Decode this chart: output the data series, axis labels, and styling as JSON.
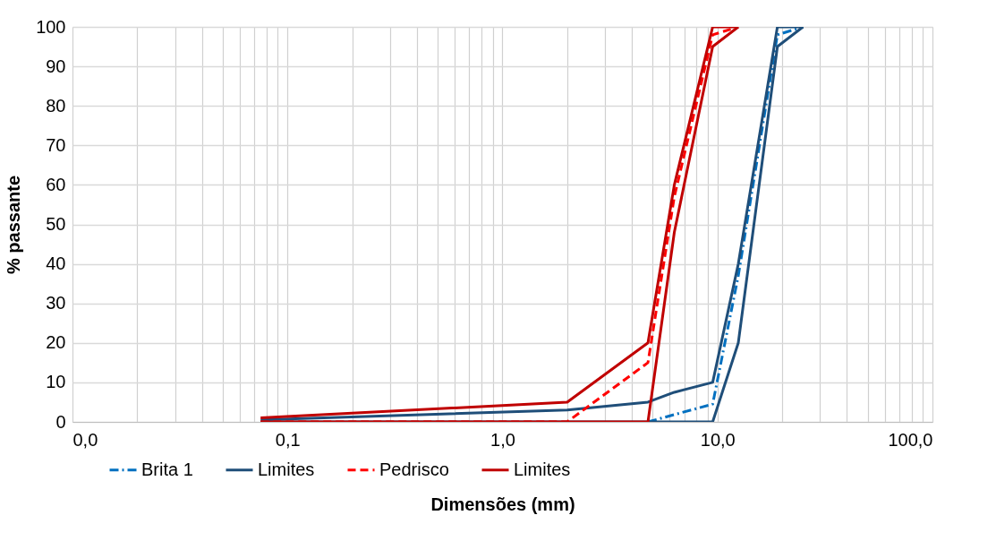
{
  "chart_data": {
    "type": "line",
    "xlabel": "Dimensões (mm)",
    "ylabel": "% passante",
    "log": "x",
    "grid": true,
    "legend": "bottom",
    "xlim": [
      0.01,
      100
    ],
    "ylim": [
      0,
      100
    ],
    "xticks": [
      {
        "value": 0.01,
        "label": "0,0"
      },
      {
        "value": 0.02,
        "label": null
      },
      {
        "value": 0.03,
        "label": null
      },
      {
        "value": 0.04,
        "label": null
      },
      {
        "value": 0.05,
        "label": null
      },
      {
        "value": 0.06,
        "label": null
      },
      {
        "value": 0.07,
        "label": null
      },
      {
        "value": 0.08,
        "label": null
      },
      {
        "value": 0.09,
        "label": null
      },
      {
        "value": 0.1,
        "label": "0,1"
      },
      {
        "value": 0.2,
        "label": null
      },
      {
        "value": 0.3,
        "label": null
      },
      {
        "value": 0.4,
        "label": null
      },
      {
        "value": 0.5,
        "label": null
      },
      {
        "value": 0.6,
        "label": null
      },
      {
        "value": 0.7,
        "label": null
      },
      {
        "value": 0.8,
        "label": null
      },
      {
        "value": 0.9,
        "label": null
      },
      {
        "value": 1,
        "label": "1,0"
      },
      {
        "value": 2,
        "label": null
      },
      {
        "value": 3,
        "label": null
      },
      {
        "value": 4,
        "label": null
      },
      {
        "value": 5,
        "label": null
      },
      {
        "value": 6,
        "label": null
      },
      {
        "value": 7,
        "label": null
      },
      {
        "value": 8,
        "label": null
      },
      {
        "value": 9,
        "label": null
      },
      {
        "value": 10,
        "label": "10,0"
      },
      {
        "value": 20,
        "label": null
      },
      {
        "value": 30,
        "label": null
      },
      {
        "value": 40,
        "label": null
      },
      {
        "value": 50,
        "label": null
      },
      {
        "value": 60,
        "label": null
      },
      {
        "value": 70,
        "label": null
      },
      {
        "value": 80,
        "label": null
      },
      {
        "value": 90,
        "label": null
      },
      {
        "value": 100,
        "label": "100,0"
      }
    ],
    "yticks": [
      0,
      10,
      20,
      30,
      40,
      50,
      60,
      70,
      80,
      90,
      100
    ],
    "series": [
      {
        "name": "Brita 1",
        "color": "#0070c0",
        "line_style": "dashdot",
        "x": [
          4.75,
          9.5,
          12.5,
          19,
          25
        ],
        "values": [
          0,
          4.5,
          37,
          98,
          100
        ]
      },
      {
        "name": "Limites",
        "color": "#1f4e79",
        "line_style": "solid",
        "x": [
          0.075,
          2,
          4.75,
          6.3,
          9.5,
          12.5,
          19,
          25
        ],
        "values": [
          0,
          0,
          0,
          0,
          0,
          20,
          95,
          100
        ]
      },
      {
        "color": "#1f4e79",
        "line_style": "solid",
        "x": [
          0.075,
          2,
          4.75,
          6.3,
          9.5,
          12.5,
          19,
          25
        ],
        "values": [
          0.5,
          3,
          5,
          7.5,
          10,
          40,
          100,
          100
        ]
      },
      {
        "name": "Pedrisco",
        "color": "#ff0000",
        "line_style": "dashed",
        "x": [
          0.075,
          2,
          4.75,
          6.3,
          9.5,
          12.5
        ],
        "values": [
          0,
          0,
          15,
          57,
          98,
          100
        ]
      },
      {
        "name": "Limites",
        "color": "#c00000",
        "line_style": "solid",
        "x": [
          0.075,
          2,
          4.75,
          6.3,
          9.5,
          12.5
        ],
        "values": [
          0,
          0,
          0,
          48,
          95,
          100
        ]
      },
      {
        "color": "#c00000",
        "line_style": "solid",
        "x": [
          0.075,
          2,
          4.75,
          6.3,
          9.5,
          12.5
        ],
        "values": [
          1,
          5,
          20,
          60,
          100,
          100
        ]
      }
    ]
  }
}
